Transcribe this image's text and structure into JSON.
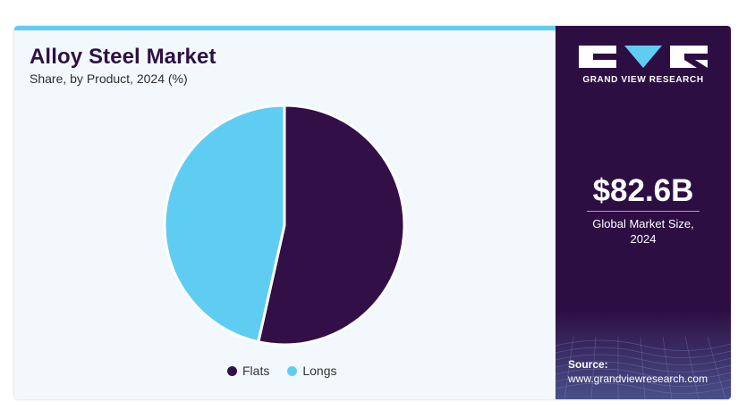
{
  "header": {
    "title": "Alloy Steel Market",
    "subtitle": "Share, by Product, 2024 (%)"
  },
  "chart_data": {
    "type": "pie",
    "title": "Alloy Steel Market",
    "subtitle": "Share, by Product, 2024 (%)",
    "categories": [
      "Flats",
      "Longs"
    ],
    "values": [
      53.5,
      46.5
    ],
    "colors": [
      "#330f47",
      "#5fcdf2"
    ],
    "legend_position": "bottom",
    "start_angle_deg": 0,
    "direction": "clockwise"
  },
  "legend": [
    {
      "label": "Flats",
      "color": "#330f47"
    },
    {
      "label": "Longs",
      "color": "#5fcdf2"
    }
  ],
  "brand": {
    "name": "GRAND VIEW RESEARCH",
    "logo_icon": "gvr-logo-icon"
  },
  "stat": {
    "value": "$82.6B",
    "caption_line1": "Global Market Size,",
    "caption_line2": "2024"
  },
  "source": {
    "label": "Source:",
    "url": "www.grandviewresearch.com"
  },
  "colors": {
    "panel": "#2d0e43",
    "accent": "#5fcdf2",
    "background": "#f3f8fc"
  }
}
